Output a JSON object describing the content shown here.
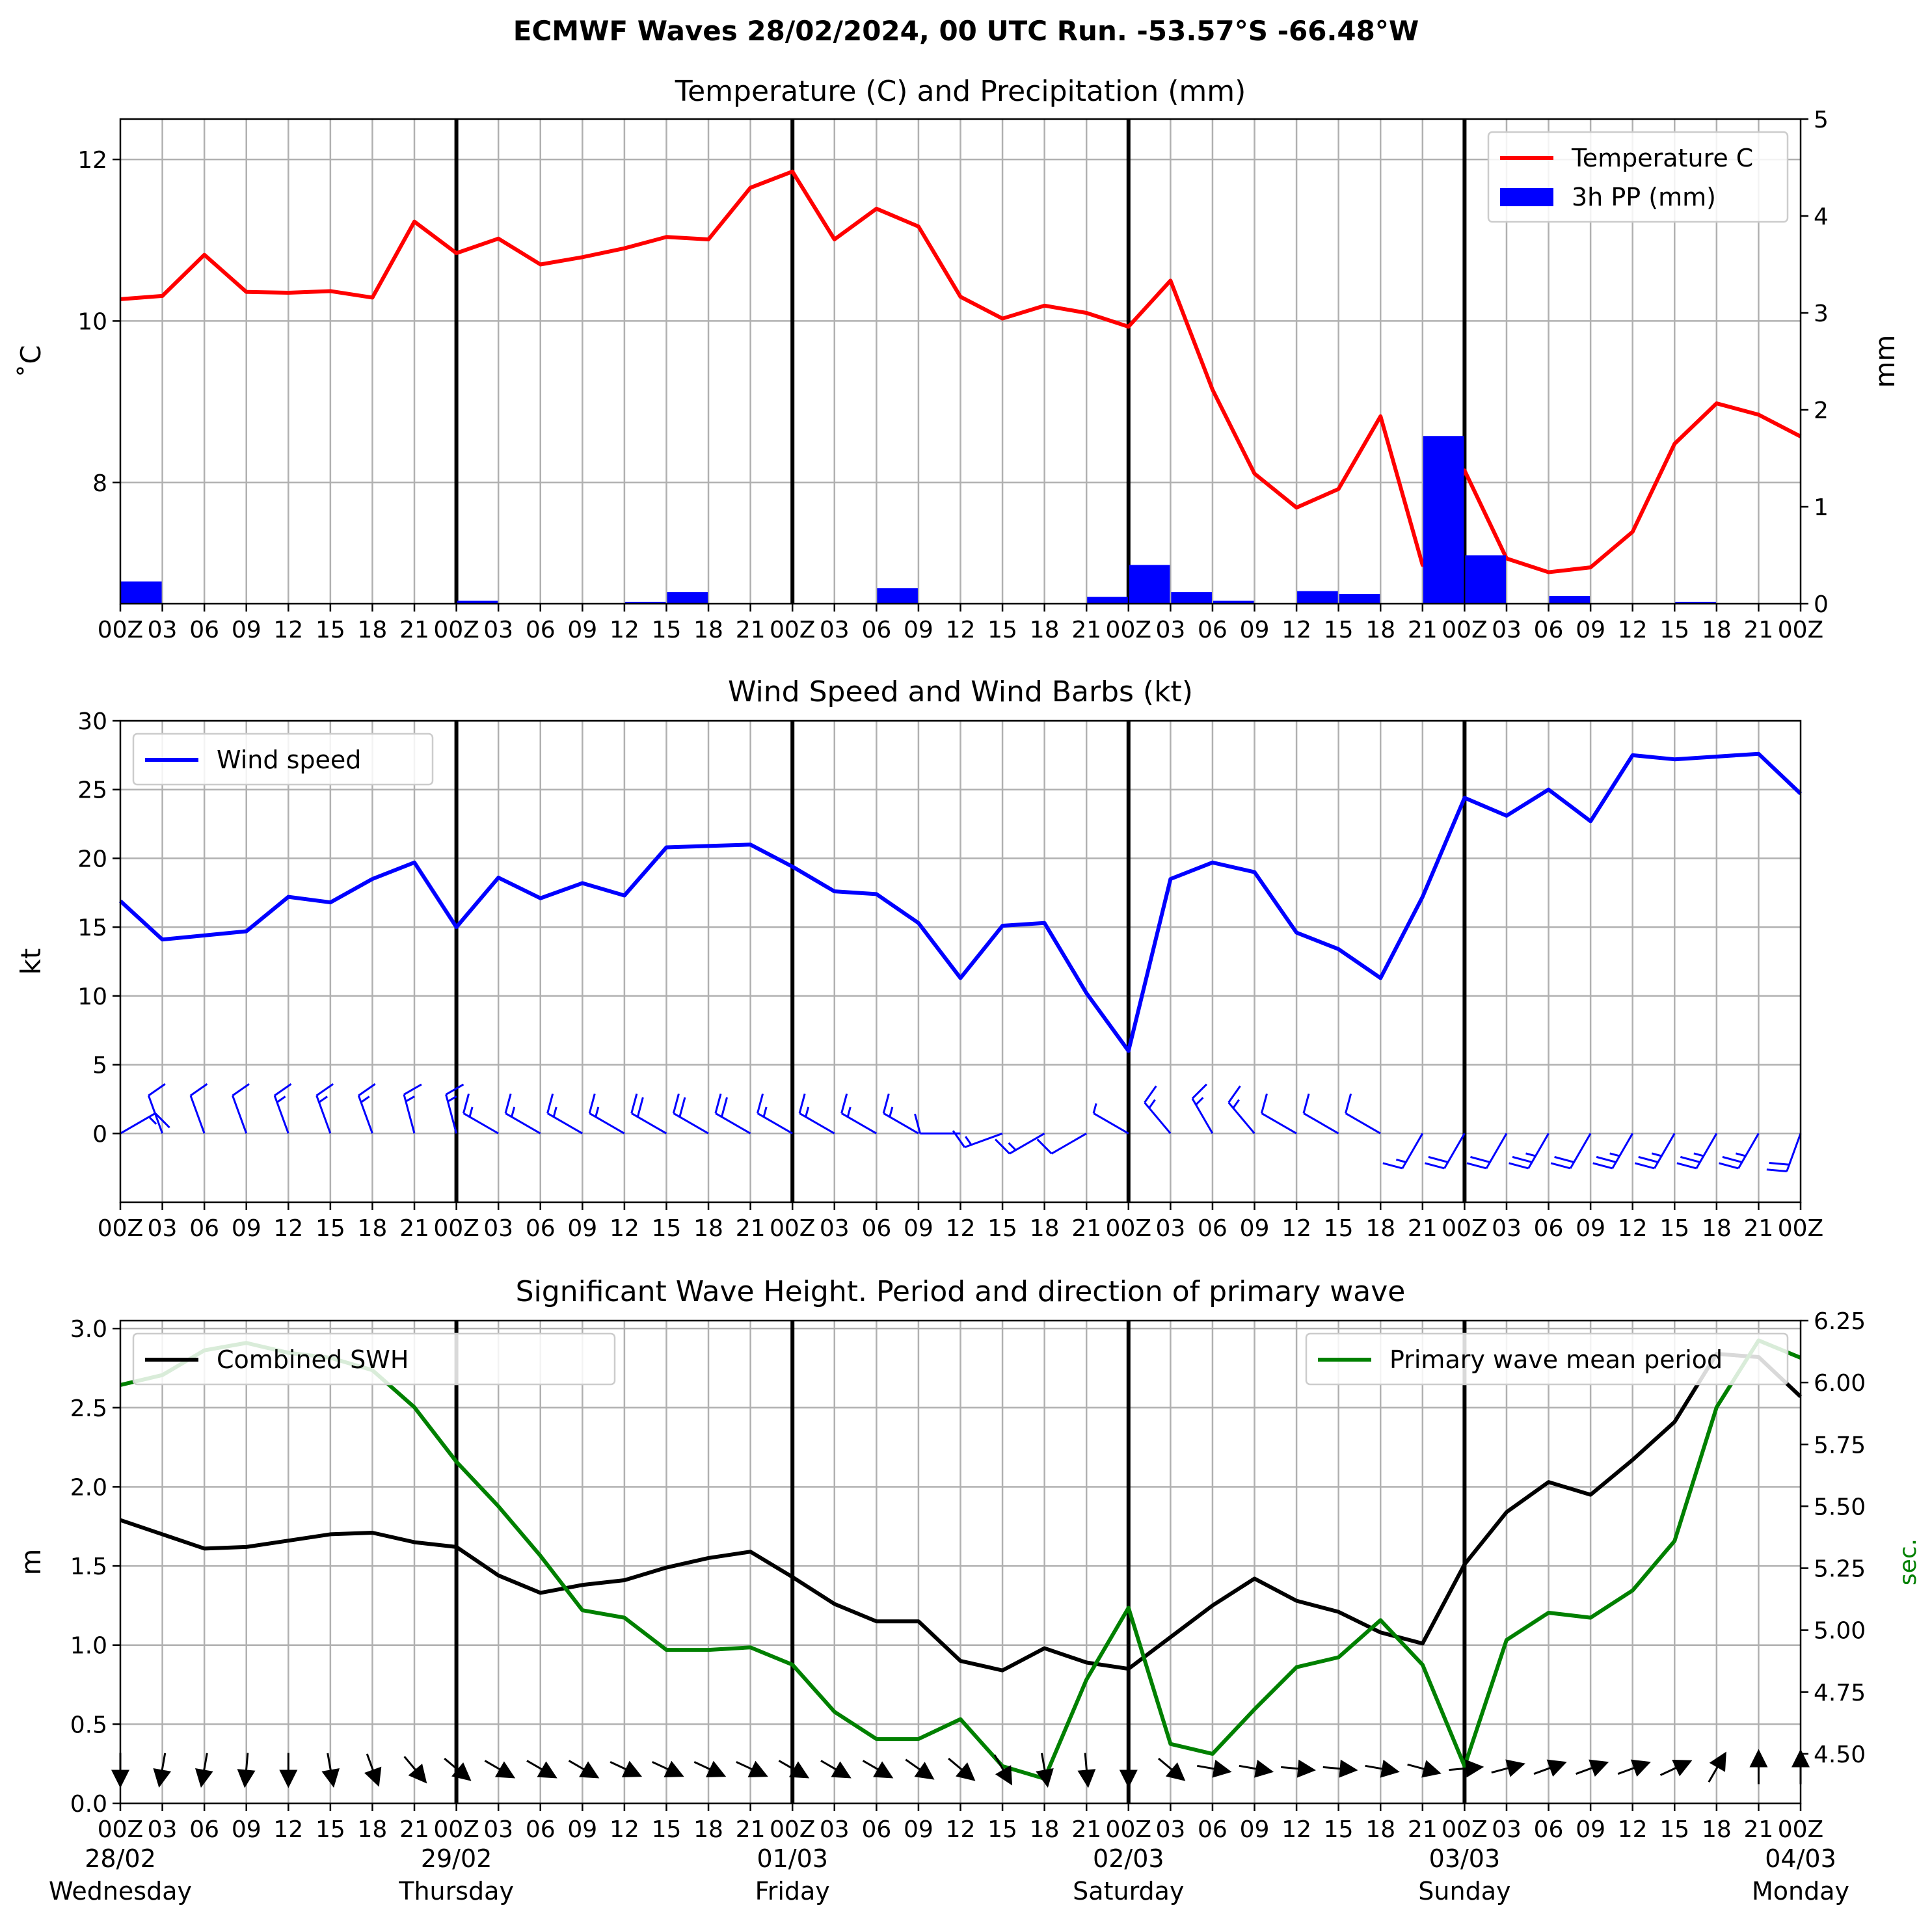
{
  "figure": {
    "title": "ECMWF Waves 28/02/2024, 00 UTC Run. -53.57°S -66.48°W"
  },
  "hour_ticks": [
    "00Z",
    "03",
    "06",
    "09",
    "12",
    "15",
    "18",
    "21",
    "00Z",
    "03",
    "06",
    "09",
    "12",
    "15",
    "18",
    "21",
    "00Z",
    "03",
    "06",
    "09",
    "12",
    "15",
    "18",
    "21",
    "00Z",
    "03",
    "06",
    "09",
    "12",
    "15",
    "18",
    "21",
    "00Z",
    "03",
    "06",
    "09",
    "12",
    "15",
    "18",
    "21",
    "00Z"
  ],
  "day_labels": [
    {
      "date": "28/02",
      "day": "Wednesday"
    },
    {
      "date": "29/02",
      "day": "Thursday"
    },
    {
      "date": "01/03",
      "day": "Friday"
    },
    {
      "date": "02/03",
      "day": "Saturday"
    },
    {
      "date": "03/03",
      "day": "Sunday"
    },
    {
      "date": "04/03",
      "day": "Monday"
    }
  ],
  "chart_data": [
    {
      "type": "line",
      "title": "Temperature (C) and Precipitation (mm)",
      "ylabel": "$^\\circ$C",
      "ylabel_display": "˚C",
      "y2label": "mm",
      "ylim": [
        6.5,
        12.5
      ],
      "y2lim": [
        0,
        5
      ],
      "yticks": [
        "8",
        "10",
        "12"
      ],
      "y2ticks": [
        "0",
        "1",
        "2",
        "3",
        "4",
        "5"
      ],
      "x_step_hours": 3,
      "grid": true,
      "legend_position": "top-right",
      "series": [
        {
          "name": "Temperature C",
          "kind": "line",
          "axis": "left",
          "color": "#ff0000",
          "values": [
            10.27,
            10.31,
            10.82,
            10.36,
            10.35,
            10.37,
            10.29,
            11.23,
            10.84,
            11.02,
            10.7,
            10.79,
            10.9,
            11.04,
            11.01,
            11.65,
            11.85,
            11.01,
            11.39,
            11.17,
            10.3,
            10.03,
            10.19,
            10.1,
            9.93,
            10.5,
            9.15,
            8.11,
            7.69,
            7.92,
            8.82,
            6.98,
            8.15,
            7.06,
            6.89,
            6.95,
            7.39,
            8.48,
            8.98,
            8.84,
            8.57
          ]
        },
        {
          "name": "3h PP (mm)",
          "kind": "bar",
          "axis": "right",
          "color": "#0000ff",
          "values": [
            0.23,
            0,
            0,
            0,
            0,
            0,
            0,
            0,
            0.03,
            0,
            0,
            0,
            0.02,
            0.12,
            0,
            0,
            0,
            0,
            0.16,
            0,
            0,
            0,
            0,
            0.07,
            0.4,
            0.12,
            0.03,
            0,
            0.13,
            0.1,
            0,
            1.73,
            0.5,
            0,
            0.08,
            0,
            0,
            0.02,
            0,
            0,
            0
          ]
        }
      ]
    },
    {
      "type": "line",
      "title": "Wind Speed and Wind Barbs (kt)",
      "ylabel": "kt",
      "ylim": [
        -5,
        30
      ],
      "yticks": [
        "0",
        "5",
        "10",
        "15",
        "20",
        "25",
        "30"
      ],
      "x_step_hours": 3,
      "grid": true,
      "legend_position": "top-left",
      "series": [
        {
          "name": "Wind speed",
          "kind": "line",
          "color": "#0000ff",
          "values": [
            16.9,
            14.1,
            14.4,
            14.7,
            17.2,
            16.8,
            18.5,
            19.7,
            15.0,
            18.6,
            17.1,
            18.2,
            17.3,
            20.8,
            20.9,
            21.0,
            19.4,
            17.6,
            17.4,
            15.3,
            11.3,
            15.1,
            15.3,
            10.2,
            6.0,
            18.5,
            19.7,
            19.0,
            14.6,
            13.4,
            11.3,
            17.2,
            24.4,
            23.1,
            25.0,
            22.7,
            27.5,
            27.2,
            27.4,
            27.6,
            24.7
          ]
        },
        {
          "name": "wind_barbs",
          "kind": "barbs",
          "color": "#0000ff",
          "baseline": 0,
          "direction_deg": [
            60,
            340,
            340,
            340,
            340,
            340,
            340,
            345,
            345,
            300,
            300,
            300,
            300,
            300,
            300,
            300,
            300,
            300,
            300,
            300,
            270,
            250,
            240,
            240,
            300,
            320,
            330,
            320,
            300,
            300,
            300,
            210,
            210,
            210,
            210,
            210,
            210,
            210,
            210,
            210,
            200
          ]
        }
      ]
    },
    {
      "type": "line",
      "title": "Significant Wave Height. Period and direction of primary wave",
      "ylabel": "m",
      "y2label": "sec.",
      "ylim": [
        0,
        3.05
      ],
      "y2lim": [
        4.3,
        6.25
      ],
      "yticks": [
        "0.0",
        "0.5",
        "1.0",
        "1.5",
        "2.0",
        "2.5",
        "3.0"
      ],
      "y2ticks": [
        "4.50",
        "4.75",
        "5.00",
        "5.25",
        "5.50",
        "5.75",
        "6.00",
        "6.25"
      ],
      "x_step_hours": 3,
      "grid": true,
      "series": [
        {
          "name": "Combined SWH",
          "kind": "line",
          "axis": "left",
          "color": "#000000",
          "legend_position": "top-left",
          "values": [
            1.79,
            1.7,
            1.61,
            1.62,
            1.66,
            1.7,
            1.71,
            1.65,
            1.62,
            1.44,
            1.33,
            1.38,
            1.41,
            1.49,
            1.55,
            1.59,
            1.43,
            1.26,
            1.15,
            1.15,
            0.9,
            0.84,
            0.98,
            0.89,
            0.85,
            1.05,
            1.25,
            1.42,
            1.28,
            1.21,
            1.08,
            1.01,
            1.51,
            1.84,
            2.03,
            1.95,
            2.17,
            2.41,
            2.84,
            2.82,
            2.57
          ]
        },
        {
          "name": "Primary wave mean period",
          "kind": "line",
          "axis": "right",
          "color": "#008000",
          "legend_position": "top-right",
          "values": [
            5.99,
            6.03,
            6.13,
            6.16,
            6.12,
            6.1,
            6.05,
            5.9,
            5.68,
            5.5,
            5.3,
            5.08,
            5.05,
            4.92,
            4.92,
            4.93,
            4.86,
            4.67,
            4.56,
            4.56,
            4.64,
            4.45,
            4.4,
            4.8,
            5.09,
            4.54,
            4.5,
            4.68,
            4.85,
            4.89,
            5.04,
            4.86,
            4.45,
            4.96,
            5.07,
            5.05,
            5.16,
            5.36,
            5.9,
            6.17,
            6.1
          ]
        },
        {
          "name": "wave_direction_arrows",
          "kind": "arrows",
          "color": "#000000",
          "baseline": 0.22,
          "to_direction_deg": [
            180,
            190,
            190,
            185,
            180,
            170,
            160,
            140,
            130,
            120,
            120,
            120,
            115,
            115,
            115,
            115,
            120,
            120,
            120,
            125,
            130,
            150,
            170,
            175,
            180,
            130,
            100,
            100,
            95,
            95,
            100,
            105,
            85,
            75,
            70,
            70,
            70,
            65,
            30,
            0,
            0
          ]
        }
      ]
    }
  ]
}
